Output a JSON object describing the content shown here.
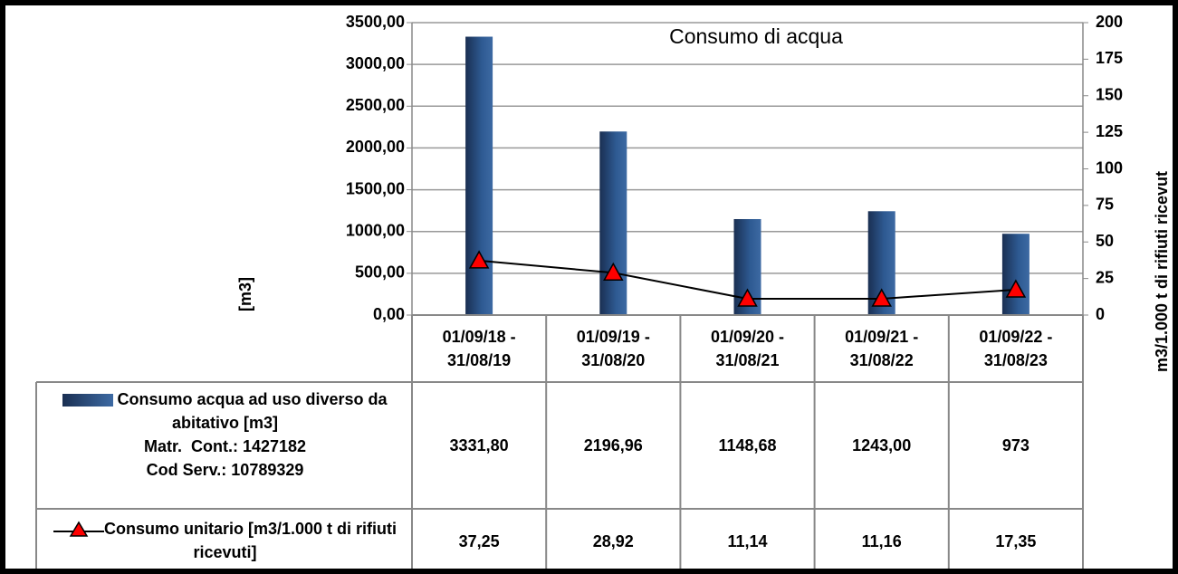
{
  "chart_data": {
    "type": "bar_line",
    "title": "Consumo di acqua",
    "categories": [
      "01/09/18 - 31/08/19",
      "01/09/19 - 31/08/20",
      "01/09/20 - 31/08/21",
      "01/09/21 - 31/08/22",
      "01/09/22 - 31/08/23"
    ],
    "series": [
      {
        "name": "Consumo acqua ad uso diverso da abitativo [m3]",
        "type": "bar",
        "color": "#1f3c68",
        "notes": [
          "Matr.  Cont.: 1427182",
          "Cod Serv.: 10789329"
        ],
        "values": [
          3331.8,
          2196.96,
          1148.68,
          1243.0,
          973
        ],
        "value_labels": [
          "3331,80",
          "2196,96",
          "1148,68",
          "1243,00",
          "973"
        ]
      },
      {
        "name": "Consumo unitario [m3/1.000 t di rifiuti ricevuti]",
        "type": "line",
        "axis": "y2",
        "color": "#000000",
        "marker_color": "#ff0000",
        "values": [
          37.25,
          28.92,
          11.14,
          11.16,
          17.35
        ],
        "value_labels": [
          "37,25",
          "28,92",
          "11,14",
          "11,16",
          "17,35"
        ]
      }
    ],
    "y_label": "[m3]",
    "y2_label": "m3/1.000 t di rifiuti ricevut",
    "ylim": [
      0,
      3500
    ],
    "yticks": [
      {
        "value": 0,
        "label": "0,00"
      },
      {
        "value": 500,
        "label": "500,00"
      },
      {
        "value": 1000,
        "label": "1000,00"
      },
      {
        "value": 1500,
        "label": "1500,00"
      },
      {
        "value": 2000,
        "label": "2000,00"
      },
      {
        "value": 2500,
        "label": "2500,00"
      },
      {
        "value": 3000,
        "label": "3000,00"
      },
      {
        "value": 3500,
        "label": "3500,00"
      }
    ],
    "y2lim": [
      0,
      200
    ],
    "y2ticks": [
      0,
      25,
      50,
      75,
      100,
      125,
      150,
      175,
      200
    ],
    "grid": true
  }
}
